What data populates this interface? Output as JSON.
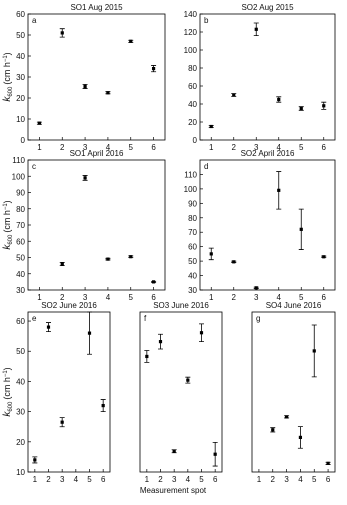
{
  "chart_data": [
    {
      "type": "scatter",
      "label": "a",
      "title": "SO1 Aug 2015",
      "ylabel": [
        "k",
        "600",
        "(cm h",
        "−1",
        ")"
      ],
      "x": [
        1,
        2,
        3,
        4,
        5,
        6
      ],
      "values": [
        8,
        51,
        25.5,
        22.5,
        47,
        34
      ],
      "errors": [
        0.5,
        2,
        1,
        0.5,
        0.5,
        1.5
      ],
      "xlim": [
        0.5,
        6.5
      ],
      "xticks": [
        1,
        2,
        3,
        4,
        5,
        6
      ],
      "ylim": [
        0,
        60
      ],
      "yticks": [
        0,
        10,
        20,
        30,
        40,
        50,
        60
      ],
      "color": "#000000"
    },
    {
      "type": "scatter",
      "label": "b",
      "title": "SO2 Aug 2015",
      "x": [
        1,
        2,
        3,
        4,
        5,
        6
      ],
      "values": [
        15,
        50,
        123,
        45,
        35,
        38
      ],
      "errors": [
        1,
        1.5,
        7,
        3,
        2,
        4
      ],
      "xlim": [
        0.5,
        6.5
      ],
      "xticks": [
        1,
        2,
        3,
        4,
        5,
        6
      ],
      "ylim": [
        0,
        140
      ],
      "yticks": [
        0,
        20,
        40,
        60,
        80,
        100,
        120,
        140
      ],
      "color": "#000000"
    },
    {
      "type": "scatter",
      "label": "c",
      "title": "SO1 April 2016",
      "ylabel": [
        "k",
        "600",
        "(cm h",
        "−1",
        ")"
      ],
      "x": [
        1,
        2,
        3,
        4,
        5,
        6
      ],
      "values": [
        null,
        46,
        99,
        49,
        50.5,
        35
      ],
      "errors": [
        null,
        1,
        1.5,
        0.5,
        0.5,
        0.3
      ],
      "xlim": [
        0.5,
        6.5
      ],
      "xticks": [
        1,
        2,
        3,
        4,
        5,
        6
      ],
      "ylim": [
        30,
        110
      ],
      "yticks": [
        30,
        40,
        50,
        60,
        70,
        80,
        90,
        100,
        110
      ],
      "color": "#000000"
    },
    {
      "type": "scatter",
      "label": "d",
      "title": "SO2 April 2016",
      "x": [
        1,
        2,
        3,
        4,
        5,
        6
      ],
      "values": [
        55,
        49.5,
        31.5,
        99,
        72,
        53
      ],
      "errors": [
        4,
        0.5,
        0.5,
        13,
        14,
        0.5
      ],
      "xlim": [
        0.5,
        6.5
      ],
      "xticks": [
        1,
        2,
        3,
        4,
        5,
        6
      ],
      "ylim": [
        30,
        120
      ],
      "yticks": [
        30,
        40,
        50,
        60,
        70,
        80,
        90,
        100,
        110
      ],
      "color": "#000000"
    },
    {
      "type": "scatter",
      "label": "e",
      "title": "SO2 June 2016",
      "ylabel": [
        "k",
        "600",
        "(cm h",
        "−1",
        ")"
      ],
      "x": [
        1,
        2,
        3,
        4,
        5,
        6
      ],
      "values": [
        14,
        58,
        26.5,
        null,
        56,
        32
      ],
      "errors": [
        1,
        1.5,
        1.5,
        null,
        7,
        2
      ],
      "xlim": [
        0.5,
        6.5
      ],
      "xticks": [
        1,
        2,
        3,
        4,
        5,
        6
      ],
      "ylim": [
        10,
        63
      ],
      "yticks": [
        10,
        20,
        30,
        40,
        50,
        60
      ],
      "color": "#000000"
    },
    {
      "type": "scatter",
      "label": "f",
      "title": "SO3 June 2016",
      "xlabel": "Measurement spot",
      "x": [
        1,
        2,
        3,
        4,
        5,
        6
      ],
      "values": [
        67,
        72,
        35,
        59,
        75,
        34
      ],
      "errors": [
        2,
        2.5,
        0.5,
        1,
        3,
        4
      ],
      "xlim": [
        0.5,
        6.5
      ],
      "xticks": [
        1,
        2,
        3,
        4,
        5,
        6
      ],
      "ylim": [
        28,
        82
      ],
      "color": "#000000"
    },
    {
      "type": "scatter",
      "label": "g",
      "title": "SO4 June 2016",
      "x": [
        1,
        2,
        3,
        4,
        5,
        6
      ],
      "values": [
        null,
        37.5,
        43.5,
        34,
        74,
        22
      ],
      "errors": [
        null,
        1,
        0.5,
        5,
        12,
        0.5
      ],
      "xlim": [
        0.5,
        6.5
      ],
      "xticks": [
        1,
        2,
        3,
        4,
        5,
        6
      ],
      "ylim": [
        18,
        92
      ],
      "color": "#000000"
    }
  ]
}
